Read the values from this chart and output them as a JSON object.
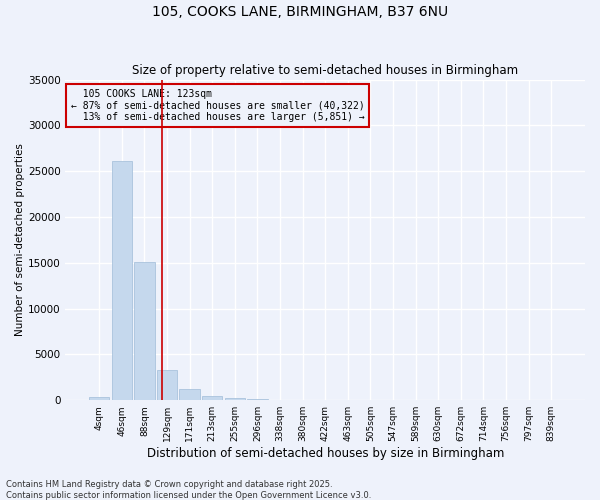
{
  "title1": "105, COOKS LANE, BIRMINGHAM, B37 6NU",
  "title2": "Size of property relative to semi-detached houses in Birmingham",
  "xlabel": "Distribution of semi-detached houses by size in Birmingham",
  "ylabel": "Number of semi-detached properties",
  "categories": [
    "4sqm",
    "46sqm",
    "88sqm",
    "129sqm",
    "171sqm",
    "213sqm",
    "255sqm",
    "296sqm",
    "338sqm",
    "380sqm",
    "422sqm",
    "463sqm",
    "505sqm",
    "547sqm",
    "589sqm",
    "630sqm",
    "672sqm",
    "714sqm",
    "756sqm",
    "797sqm",
    "839sqm"
  ],
  "values": [
    400,
    26100,
    15050,
    3250,
    1200,
    430,
    190,
    80,
    0,
    0,
    0,
    0,
    0,
    0,
    0,
    0,
    0,
    0,
    0,
    0,
    0
  ],
  "bar_color": "#c5d8ed",
  "bar_edgecolor": "#a0bcd8",
  "property_label": "105 COOKS LANE: 123sqm",
  "pct_smaller": 87,
  "pct_larger": 13,
  "count_smaller": 40322,
  "count_larger": 5851,
  "vline_color": "#cc0000",
  "vline_x_index": 2.78,
  "annotation_box_color": "#cc0000",
  "background_color": "#eef2fb",
  "grid_color": "#ffffff",
  "ylim": [
    0,
    35000
  ],
  "yticks": [
    0,
    5000,
    10000,
    15000,
    20000,
    25000,
    30000,
    35000
  ],
  "footnote1": "Contains HM Land Registry data © Crown copyright and database right 2025.",
  "footnote2": "Contains public sector information licensed under the Open Government Licence v3.0."
}
